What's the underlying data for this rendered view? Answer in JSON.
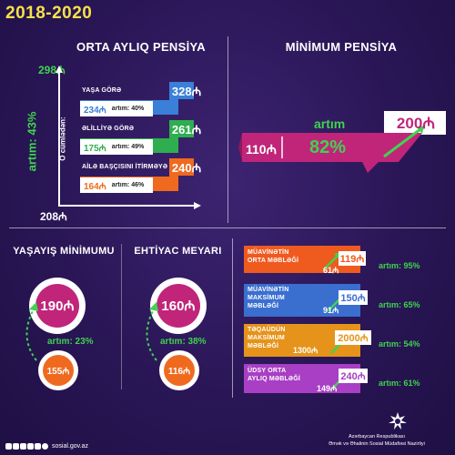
{
  "header": {
    "year_range": "2018-2020"
  },
  "avg_pension": {
    "title": "ORTA AYLIQ PENSİYA",
    "axis_top": "298₼",
    "axis_bottom": "208₼",
    "axis_increase": "artım: 43%",
    "axis_side_label": "O cümlədən:",
    "categories": [
      {
        "label": "YAŞA GÖRƏ",
        "old": "234₼",
        "increase": "artım: 40%",
        "new": "328₼",
        "color": "#3a7fd8"
      },
      {
        "label": "ƏLİLLİYƏ GÖRƏ",
        "old": "175₼",
        "increase": "artım: 49%",
        "new": "261₼",
        "color": "#2fae50"
      },
      {
        "label": "AİLƏ BAŞÇISINI İTİRMƏYƏ GÖRƏ",
        "old": "164₼",
        "increase": "artım: 46%",
        "new": "240₼",
        "color": "#ef6a1f"
      }
    ]
  },
  "min_pension": {
    "title": "MİNİMUM PENSİYA",
    "increase_label": "artım",
    "old": "110₼",
    "percent": "82%",
    "new": "200₼"
  },
  "living_min": {
    "title": "YAŞAYIŞ MİNİMUMU",
    "new": "190₼",
    "old": "155₼",
    "increase": "artım: 23%"
  },
  "need_level": {
    "title": "EHTİYAC MEYARI",
    "new": "160₼",
    "old": "116₼",
    "increase": "artım: 38%"
  },
  "bars": [
    {
      "label": "MÜAVİNƏTİN ORTA MƏBLƏĞİ",
      "old": "61₼",
      "new": "119₼",
      "increase": "artım: 95%",
      "color": "#ef5a1f"
    },
    {
      "label": "MÜAVİNƏTİN MAKSİMUM MƏBLƏĞİ",
      "old": "91₼",
      "new": "150₼",
      "increase": "artım: 65%",
      "color": "#3a6fd0"
    },
    {
      "label": "TƏQAÜDÜN MAKSİMUM MƏBLƏĞİ",
      "old": "1300₼",
      "new": "2000₼",
      "increase": "artım: 54%",
      "color": "#e5931a"
    },
    {
      "label": "ÜDSY ORTA AYLIQ MƏBLƏĞİ",
      "old": "149₼",
      "new": "240₼",
      "increase": "artım: 61%",
      "color": "#a83fc4"
    }
  ],
  "footer": {
    "site": "sosial.gov.az",
    "ministry_line1": "Azərbaycan Respublikası",
    "ministry_line2": "Əmək və Əhalinin Sosial Müdafiəsi Nazirliyi"
  },
  "colors": {
    "accent_yellow": "#f5e14a",
    "green": "#3fd34e",
    "magenta": "#c0257a",
    "orange": "#ef6a1f"
  }
}
